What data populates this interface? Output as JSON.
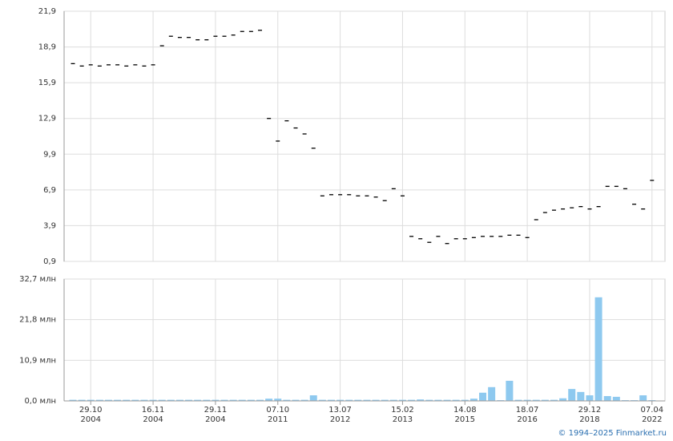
{
  "chart_data": [
    {
      "type": "dash",
      "color": "#000000",
      "values": [
        17.5,
        17.3,
        17.4,
        17.3,
        17.4,
        17.4,
        17.3,
        17.4,
        17.3,
        17.4,
        19.0,
        19.8,
        19.7,
        19.7,
        19.5,
        19.5,
        19.8,
        19.8,
        19.9,
        20.2,
        20.2,
        20.3,
        12.9,
        11.0,
        12.7,
        12.1,
        11.6,
        10.4,
        6.4,
        6.5,
        6.5,
        6.5,
        6.4,
        6.4,
        6.3,
        6.0,
        7.0,
        6.4,
        3.0,
        2.8,
        2.5,
        3.0,
        2.4,
        2.8,
        2.8,
        2.9,
        3.0,
        3.0,
        3.0,
        3.1,
        3.1,
        2.9,
        4.4,
        5.0,
        5.2,
        5.3,
        5.4,
        5.5,
        5.3,
        5.5,
        7.2,
        7.2,
        7.0,
        5.7,
        5.3,
        7.7
      ],
      "ylim": [
        0.9,
        21.9
      ],
      "yticks": [
        {
          "value": 0.9,
          "label": "0,9"
        },
        {
          "value": 3.9,
          "label": "3,9"
        },
        {
          "value": 6.9,
          "label": "6,9"
        },
        {
          "value": 9.9,
          "label": "9,9"
        },
        {
          "value": 12.9,
          "label": "12,9"
        },
        {
          "value": 15.9,
          "label": "15,9"
        },
        {
          "value": 18.9,
          "label": "18,9"
        },
        {
          "value": 21.9,
          "label": "21,9"
        }
      ],
      "grid": true
    },
    {
      "type": "bar",
      "color": "#8ec9ef",
      "categories": [
        null,
        null,
        "29.10\n2004",
        null,
        null,
        null,
        null,
        null,
        null,
        "16.11\n2004",
        null,
        null,
        null,
        null,
        null,
        null,
        "29.11\n2004",
        null,
        null,
        null,
        null,
        null,
        null,
        "07.10\n2011",
        null,
        null,
        null,
        null,
        null,
        null,
        "13.07\n2012",
        null,
        null,
        null,
        null,
        null,
        null,
        "15.02\n2013",
        null,
        null,
        null,
        null,
        null,
        null,
        "14.08\n2015",
        null,
        null,
        null,
        null,
        null,
        null,
        "18.07\n2016",
        null,
        null,
        null,
        null,
        null,
        null,
        "29.12\n2018",
        null,
        null,
        null,
        null,
        null,
        null,
        "07.04\n2022"
      ],
      "values": [
        0.3,
        0.3,
        0.3,
        0.3,
        0.3,
        0.3,
        0.3,
        0.3,
        0.3,
        0.3,
        0.3,
        0.3,
        0.3,
        0.3,
        0.3,
        0.3,
        0.3,
        0.3,
        0.3,
        0.3,
        0.3,
        0.3,
        0.6,
        0.6,
        0.3,
        0.3,
        0.3,
        1.5,
        0.3,
        0.3,
        0.3,
        0.3,
        0.3,
        0.3,
        0.3,
        0.3,
        0.3,
        0.3,
        0.3,
        0.4,
        0.3,
        0.3,
        0.3,
        0.3,
        0.3,
        0.6,
        2.2,
        3.7,
        0.2,
        5.4,
        0.3,
        0.3,
        0.3,
        0.3,
        0.3,
        0.7,
        3.2,
        2.4,
        1.5,
        27.8,
        1.3,
        1.1,
        0.2,
        0.2,
        1.5,
        0.2
      ],
      "ylim": [
        0,
        32.7
      ],
      "yticks": [
        {
          "value": 0,
          "label": "0,0 млн"
        },
        {
          "value": 10.9,
          "label": "10,9 млн"
        },
        {
          "value": 21.8,
          "label": "21,8 млн"
        },
        {
          "value": 32.7,
          "label": "32,7 млн"
        }
      ],
      "grid": true
    }
  ],
  "footer": "© 1994–2025 Finmarket.ru"
}
